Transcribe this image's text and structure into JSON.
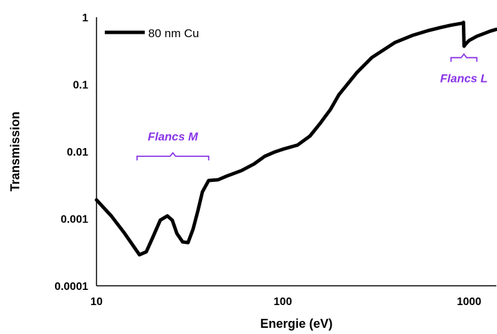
{
  "chart_data": {
    "type": "line",
    "xlabel": "Energie (eV)",
    "ylabel": "Transmission",
    "xscale": "log",
    "yscale": "log",
    "xlim": [
      10,
      1400
    ],
    "ylim": [
      0.0001,
      1
    ],
    "x_ticks": [
      "10",
      "100",
      "1000"
    ],
    "y_ticks": [
      "0.0001",
      "0.001",
      "0.01",
      "0.1",
      "1"
    ],
    "grid": false,
    "legend_position": "top-left",
    "series": [
      {
        "name": "80 nm Cu",
        "color": "#000000",
        "x": [
          10,
          12,
          14,
          15.5,
          17,
          18.5,
          20,
          22,
          24,
          25.5,
          27,
          29,
          31,
          33,
          35,
          37,
          40,
          45,
          50,
          60,
          70,
          80,
          90,
          100,
          120,
          140,
          160,
          180,
          200,
          250,
          300,
          400,
          500,
          600,
          700,
          800,
          932,
          933,
          940,
          960,
          1000,
          1100,
          1200,
          1300,
          1400
        ],
        "y": [
          0.0019,
          0.0011,
          0.00063,
          0.00042,
          0.00029,
          0.00032,
          0.00052,
          0.00095,
          0.0011,
          0.00095,
          0.0006,
          0.00045,
          0.00044,
          0.0007,
          0.0013,
          0.0025,
          0.0037,
          0.0038,
          0.0043,
          0.0052,
          0.0065,
          0.0085,
          0.0098,
          0.0108,
          0.0125,
          0.017,
          0.027,
          0.042,
          0.07,
          0.15,
          0.25,
          0.42,
          0.54,
          0.63,
          0.7,
          0.76,
          0.82,
          0.84,
          0.37,
          0.4,
          0.45,
          0.52,
          0.57,
          0.62,
          0.66
        ]
      }
    ],
    "annotations": [
      {
        "text": "Flancs M",
        "x_range": [
          16.5,
          40
        ],
        "y": 0.0085
      },
      {
        "text": "Flancs L",
        "x_range": [
          800,
          1100
        ],
        "y": 0.25
      }
    ],
    "annotation_color": "#8A35E6"
  }
}
